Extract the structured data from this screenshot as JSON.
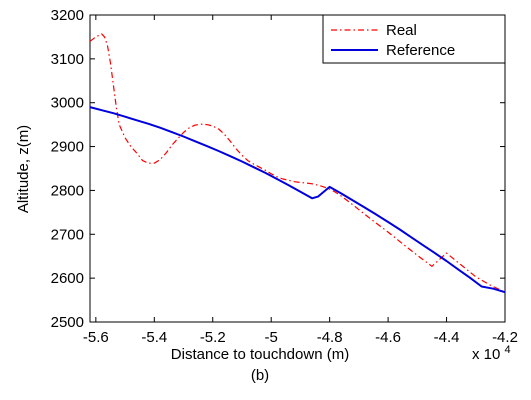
{
  "chart_data": {
    "type": "line",
    "xlabel": "Distance to touchdown (m)",
    "ylabel": "Altitude, z(m)",
    "caption": "(b)",
    "x_multiplier_label": "x 10",
    "x_multiplier_exponent": "4",
    "xlim": [
      -5.62,
      -4.2
    ],
    "ylim": [
      2500,
      3200
    ],
    "x_ticks": [
      -5.6,
      -5.4,
      -5.2,
      -5,
      -4.8,
      -4.6,
      -4.4,
      -4.2
    ],
    "x_tick_labels": [
      "-5.6",
      "-5.4",
      "-5.2",
      "-5",
      "-4.8",
      "-4.6",
      "-4.4",
      "-4.2"
    ],
    "y_ticks": [
      2500,
      2600,
      2700,
      2800,
      2900,
      3000,
      3100,
      3200
    ],
    "y_tick_labels": [
      "2500",
      "2600",
      "2700",
      "2800",
      "2900",
      "3000",
      "3100",
      "3200"
    ],
    "grid": false,
    "legend_position": "top-right",
    "series": [
      {
        "name": "Real",
        "color": "#ff0000",
        "style": "dash-dot",
        "x": [
          -5.62,
          -5.6,
          -5.58,
          -5.57,
          -5.56,
          -5.55,
          -5.54,
          -5.53,
          -5.52,
          -5.5,
          -5.48,
          -5.46,
          -5.44,
          -5.42,
          -5.4,
          -5.38,
          -5.36,
          -5.34,
          -5.32,
          -5.3,
          -5.28,
          -5.26,
          -5.24,
          -5.22,
          -5.2,
          -5.18,
          -5.16,
          -5.14,
          -5.12,
          -5.1,
          -5.08,
          -5.06,
          -5.04,
          -5.02,
          -5.0,
          -4.98,
          -4.96,
          -4.94,
          -4.92,
          -4.9,
          -4.88,
          -4.86,
          -4.84,
          -4.82,
          -4.8,
          -4.78,
          -4.76,
          -4.74,
          -4.72,
          -4.7,
          -4.65,
          -4.6,
          -4.55,
          -4.5,
          -4.45,
          -4.4,
          -4.35,
          -4.3,
          -4.25,
          -4.2
        ],
        "y": [
          3140,
          3150,
          3157,
          3150,
          3130,
          3090,
          3040,
          2990,
          2950,
          2920,
          2900,
          2885,
          2868,
          2862,
          2862,
          2870,
          2885,
          2903,
          2918,
          2932,
          2943,
          2949,
          2951,
          2950,
          2947,
          2940,
          2928,
          2912,
          2895,
          2880,
          2868,
          2860,
          2853,
          2846,
          2838,
          2831,
          2826,
          2823,
          2820,
          2818,
          2817,
          2815,
          2812,
          2808,
          2803,
          2796,
          2787,
          2777,
          2767,
          2756,
          2730,
          2705,
          2678,
          2652,
          2627,
          2657,
          2630,
          2603,
          2584,
          2568
        ]
      },
      {
        "name": "Reference",
        "color": "#0000dd",
        "style": "solid",
        "x": [
          -5.62,
          -5.58,
          -5.54,
          -5.5,
          -5.46,
          -5.42,
          -5.38,
          -5.34,
          -5.3,
          -5.26,
          -5.22,
          -5.18,
          -5.14,
          -5.1,
          -5.06,
          -5.02,
          -4.98,
          -4.94,
          -4.9,
          -4.86,
          -4.84,
          -4.8,
          -4.76,
          -4.72,
          -4.68,
          -4.64,
          -4.6,
          -4.56,
          -4.52,
          -4.48,
          -4.44,
          -4.4,
          -4.36,
          -4.32,
          -4.28,
          -4.24,
          -4.2
        ],
        "y": [
          2990,
          2983,
          2976,
          2968,
          2960,
          2952,
          2943,
          2933,
          2923,
          2912,
          2901,
          2890,
          2878,
          2866,
          2853,
          2840,
          2826,
          2812,
          2797,
          2782,
          2786,
          2808,
          2793,
          2777,
          2761,
          2745,
          2728,
          2711,
          2693,
          2675,
          2657,
          2639,
          2620,
          2601,
          2581,
          2576,
          2568
        ]
      }
    ]
  }
}
